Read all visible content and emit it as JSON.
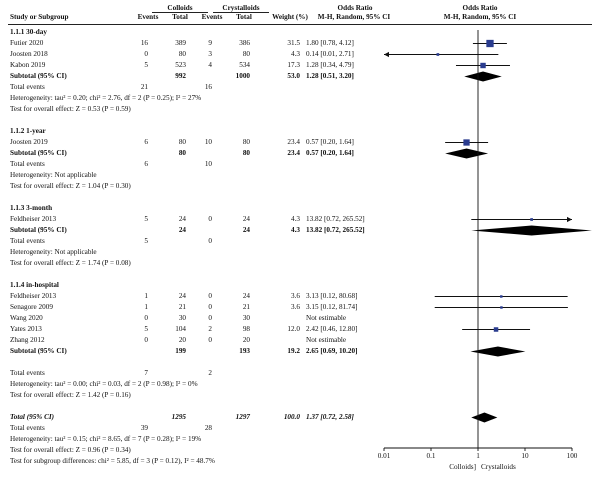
{
  "header": {
    "group1": "Colloids",
    "group2": "Crystalloids",
    "or_label": "Odds Ratio",
    "or_sub": "M-H, Random, 95% CI",
    "plot_label": "Odds Ratio",
    "plot_sub": "M-H, Random, 95% CI",
    "study": "Study or Subgroup",
    "events": "Events",
    "total": "Total",
    "weight": "Weight (%)"
  },
  "chart_data": {
    "type": "forest",
    "effect_measure": "Odds Ratio (M-H, Random, 95% CI)",
    "xaxis": {
      "scale": "log",
      "range": [
        0.01,
        100
      ],
      "ticks": [
        "0.01",
        "0.1",
        "1",
        "10",
        "100"
      ],
      "left_label": "Colloids]",
      "right_label": "Crystalloids"
    },
    "rows": [
      {
        "kind": "heading",
        "label": "1.1.1 30-day"
      },
      {
        "kind": "study",
        "label": "Futier 2020",
        "e1": "16",
        "n1": "389",
        "e2": "9",
        "n2": "386",
        "weight": "31.5",
        "ci": "1.80 [0.78, 4.12]",
        "or": 1.8,
        "lo": 0.78,
        "hi": 4.12
      },
      {
        "kind": "study",
        "label": "Joosten 2018",
        "e1": "0",
        "n1": "80",
        "e2": "3",
        "n2": "80",
        "weight": "4.3",
        "ci": "0.14 [0.01, 2.71]",
        "or": 0.14,
        "lo": 0.01,
        "hi": 2.71
      },
      {
        "kind": "study",
        "label": "Kabon 2019",
        "e1": "5",
        "n1": "523",
        "e2": "4",
        "n2": "534",
        "weight": "17.3",
        "ci": "1.28 [0.34, 4.79]",
        "or": 1.28,
        "lo": 0.34,
        "hi": 4.79
      },
      {
        "kind": "subtotal",
        "label": "Subtotal (95% CI)",
        "n1": "992",
        "n2": "1000",
        "weight": "53.0",
        "ci": "1.28 [0.51, 3.20]",
        "or": 1.28,
        "lo": 0.51,
        "hi": 3.2
      },
      {
        "kind": "events",
        "label": "Total events",
        "e1": "21",
        "e2": "16"
      },
      {
        "kind": "note",
        "label": "Heterogeneity: tau² = 0.20; chi² = 2.76, df = 2 (P = 0.25); I² = 27%"
      },
      {
        "kind": "note",
        "label": "Test for overall effect: Z = 0.53 (P = 0.59)"
      },
      {
        "kind": "gap"
      },
      {
        "kind": "heading",
        "label": "1.1.2 1-year"
      },
      {
        "kind": "study",
        "label": "Joosten 2019",
        "e1": "6",
        "n1": "80",
        "e2": "10",
        "n2": "80",
        "weight": "23.4",
        "ci": "0.57 [0.20, 1.64]",
        "or": 0.57,
        "lo": 0.2,
        "hi": 1.64
      },
      {
        "kind": "subtotal",
        "label": "Subtotal (95% CI)",
        "n1": "80",
        "n2": "80",
        "weight": "23.4",
        "ci": "0.57 [0.20, 1.64]",
        "or": 0.57,
        "lo": 0.2,
        "hi": 1.64
      },
      {
        "kind": "events",
        "label": "Total events",
        "e1": "6",
        "e2": "10"
      },
      {
        "kind": "note",
        "label": "Heterogeneity: Not applicable"
      },
      {
        "kind": "note",
        "label": "Test for overall effect: Z = 1.04 (P = 0.30)"
      },
      {
        "kind": "gap"
      },
      {
        "kind": "heading",
        "label": "1.1.3 3-month"
      },
      {
        "kind": "study",
        "label": "Feldheiser 2013",
        "e1": "5",
        "n1": "24",
        "e2": "0",
        "n2": "24",
        "weight": "4.3",
        "ci": "13.82 [0.72, 265.52]",
        "or": 13.82,
        "lo": 0.72,
        "hi": 265.52
      },
      {
        "kind": "subtotal",
        "label": "Subtotal (95% CI)",
        "n1": "24",
        "n2": "24",
        "weight": "4.3",
        "ci": "13.82 [0.72, 265.52]",
        "or": 13.82,
        "lo": 0.72,
        "hi": 265.52
      },
      {
        "kind": "events",
        "label": "Total events",
        "e1": "5",
        "e2": "0"
      },
      {
        "kind": "note",
        "label": "Heterogeneity: Not applicable"
      },
      {
        "kind": "note",
        "label": "Test for overall effect: Z = 1.74 (P = 0.08)"
      },
      {
        "kind": "gap"
      },
      {
        "kind": "heading",
        "label": "1.1.4 in-hospital"
      },
      {
        "kind": "study",
        "label": "Feldheiser 2013",
        "e1": "1",
        "n1": "24",
        "e2": "0",
        "n2": "24",
        "weight": "3.6",
        "ci": "3.13 [0.12, 80.68]",
        "or": 3.13,
        "lo": 0.12,
        "hi": 80.68
      },
      {
        "kind": "study",
        "label": "Senagore 2009",
        "e1": "1",
        "n1": "21",
        "e2": "0",
        "n2": "21",
        "weight": "3.6",
        "ci": "3.15 [0.12, 81.74]",
        "or": 3.15,
        "lo": 0.12,
        "hi": 81.74
      },
      {
        "kind": "study",
        "label": "Wang 2020",
        "e1": "0",
        "n1": "30",
        "e2": "0",
        "n2": "30",
        "weight": "",
        "ci": "Not estimable"
      },
      {
        "kind": "study",
        "label": "Yates 2013",
        "e1": "5",
        "n1": "104",
        "e2": "2",
        "n2": "98",
        "weight": "12.0",
        "ci": "2.42 [0.46, 12.80]",
        "or": 2.42,
        "lo": 0.46,
        "hi": 12.8
      },
      {
        "kind": "study",
        "label": "Zhang 2012",
        "e1": "0",
        "n1": "20",
        "e2": "0",
        "n2": "20",
        "weight": "",
        "ci": "Not estimable"
      },
      {
        "kind": "subtotal",
        "label": "Subtotal (95% CI)",
        "n1": "199",
        "n2": "193",
        "weight": "19.2",
        "ci": "2.65 [0.69, 10.20]",
        "or": 2.65,
        "lo": 0.69,
        "hi": 10.2
      },
      {
        "kind": "gap"
      },
      {
        "kind": "events",
        "label": "Total events",
        "e1": "7",
        "e2": "2"
      },
      {
        "kind": "note",
        "label": "Heterogeneity: tau² = 0.00; chi² = 0.03, df = 2 (P = 0.98); I² = 0%"
      },
      {
        "kind": "note",
        "label": "Test for overall effect: Z = 1.42 (P = 0.16)"
      },
      {
        "kind": "gap"
      },
      {
        "kind": "total",
        "label": "Total (95% CI)",
        "n1": "1295",
        "n2": "1297",
        "weight": "100.0",
        "ci": "1.37 [0.72, 2.58]",
        "or": 1.37,
        "lo": 0.72,
        "hi": 2.58
      },
      {
        "kind": "events",
        "label": "Total events",
        "e1": "39",
        "e2": "28"
      },
      {
        "kind": "note",
        "label": "Heterogeneity: tau² = 0.15; chi² = 8.65, df = 7 (P = 0.28); I² = 19%"
      },
      {
        "kind": "note",
        "label": "Test for overall effect: Z = 0.96 (P = 0.34)"
      },
      {
        "kind": "note",
        "label": "Test for subgroup differences: chi² = 5.85, df = 3 (P = 0.12), I² = 48.7%"
      }
    ]
  }
}
